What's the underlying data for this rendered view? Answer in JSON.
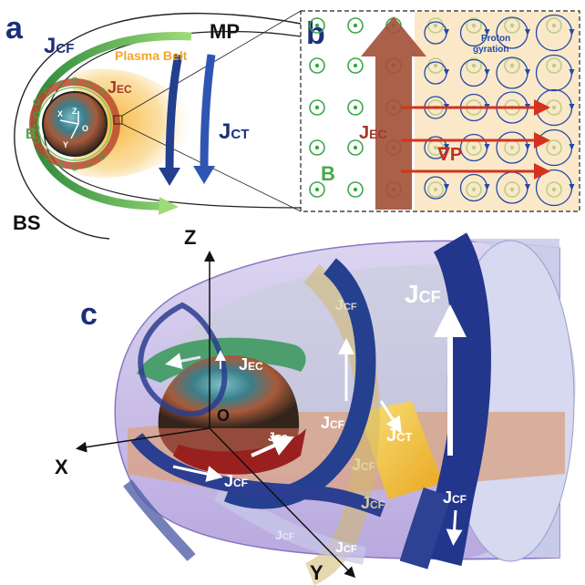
{
  "panels": {
    "a": {
      "letter": "a",
      "mp": "MP",
      "bs": "BS",
      "plasma_belt": "Plasma Belt",
      "jcf": {
        "base": "J",
        "sub": "CF"
      },
      "jec": {
        "base": "J",
        "sub": "EC"
      },
      "jct": {
        "base": "J",
        "sub": "CT"
      },
      "b": "B",
      "axes": {
        "z": "Z",
        "o": "O",
        "x": "X",
        "y": "Y"
      }
    },
    "b": {
      "letter": "b",
      "proton_line1": "Proton",
      "proton_line2": "gyration",
      "jec": {
        "base": "J",
        "sub": "EC"
      },
      "gradp": "∇P",
      "b": "B"
    },
    "c": {
      "letter": "c",
      "axes": {
        "z": "Z",
        "x": "X",
        "y": "Y",
        "o": "O"
      },
      "labels": {
        "jcf_big": {
          "base": "J",
          "sub": "CF"
        },
        "jcf_inner": {
          "base": "J",
          "sub": "CF"
        },
        "jcf_mid": {
          "base": "J",
          "sub": "CF"
        },
        "jcf_lower": {
          "base": "J",
          "sub": "CF"
        },
        "jcf_bottom_left": {
          "base": "J",
          "sub": "CF"
        },
        "jcf_bottom": {
          "base": "J",
          "sub": "CF"
        },
        "jcf_bottom_right": {
          "base": "J",
          "sub": "CF"
        },
        "jcf_faint_left": {
          "base": "J",
          "sub": "CF"
        },
        "jcf_faint_right": {
          "base": "J",
          "sub": "CF"
        },
        "jec_top": {
          "base": "J",
          "sub": "EC"
        },
        "jec_low": {
          "base": "J",
          "sub": "EC"
        },
        "jct": {
          "base": "J",
          "sub": "CT"
        }
      }
    }
  },
  "colors": {
    "navy": "#1b2f7a",
    "current_blue": "#2a3f95",
    "green": "#48a848",
    "jec_red": "#a03a2a",
    "orange_belt": "#f3a62a",
    "gradp_red": "#c0301e",
    "brown_arrow": "#a4533a",
    "ct_yellow": "#f2c12e"
  }
}
